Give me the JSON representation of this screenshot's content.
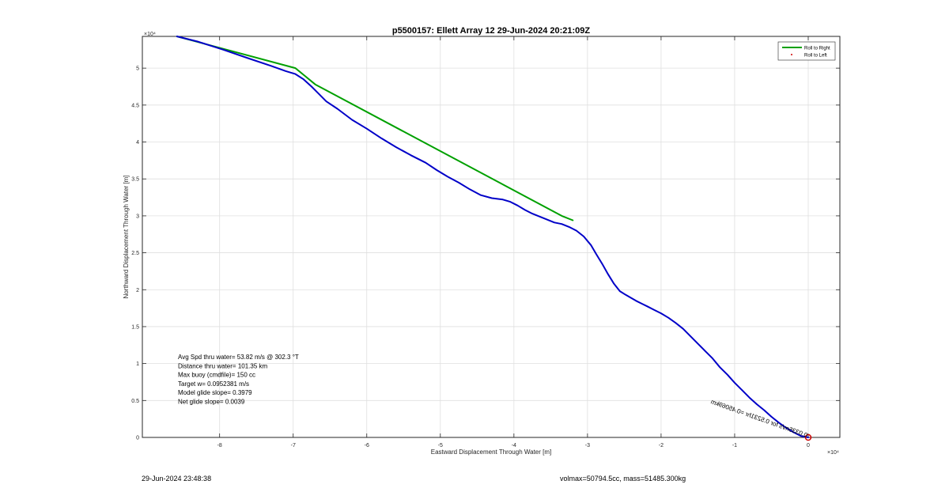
{
  "chart_data": {
    "type": "line",
    "title": "p5500157: Ellett Array 12 29-Jun-2024 20:21:09Z",
    "xlabel": "Eastward Displacement Through Water [m]",
    "ylabel": "Northward Displacement Through Water [m]",
    "x_exponent_label": "×10⁴",
    "y_exponent_label": "×10⁴",
    "xlim": [
      -90500,
      4300
    ],
    "ylim": [
      0,
      54300
    ],
    "xticks": [
      -80000,
      -70000,
      -60000,
      -50000,
      -40000,
      -30000,
      -20000,
      -10000,
      0
    ],
    "xtick_labels": [
      "-8",
      "-7",
      "-6",
      "-5",
      "-4",
      "-3",
      "-2",
      "-1",
      "0"
    ],
    "yticks": [
      0,
      5000,
      10000,
      15000,
      20000,
      25000,
      30000,
      35000,
      40000,
      45000,
      50000
    ],
    "ytick_labels": [
      "0",
      "0.5",
      "1",
      "1.5",
      "2",
      "2.5",
      "3",
      "3.5",
      "4",
      "4.5",
      "5"
    ],
    "grid": true,
    "legend_location": "top-right",
    "legend": [
      {
        "label": "Roll to Right",
        "color": "#00a000",
        "style": "line"
      },
      {
        "label": "Roll to Left",
        "color": "#d00000",
        "style": "dot"
      }
    ],
    "series": [
      {
        "name": "Roll to Right",
        "color": "#00a000",
        "x": [
          -85800,
          -69700,
          -67000,
          -33500,
          -32000
        ],
        "y": [
          54300,
          50000,
          47800,
          30000,
          29400
        ]
      },
      {
        "color": "#0000c8",
        "x": [
          -85800,
          -83000,
          -79500,
          -76000,
          -73000,
          -71000,
          -69700,
          -68600,
          -67500,
          -66500,
          -65500,
          -64000,
          -62000,
          -60000,
          -58000,
          -56000,
          -54000,
          -52000,
          -50500,
          -49000,
          -47500,
          -46000,
          -44500,
          -43000,
          -41500,
          -40500,
          -39500,
          -38500,
          -37500,
          -36500,
          -35500,
          -34500,
          -33500,
          -32500,
          -31500,
          -30500,
          -29500,
          -28800,
          -28000,
          -27200,
          -26400,
          -25600,
          -24800,
          -24100,
          -23400,
          -22600,
          -21800,
          -21000,
          -20000,
          -19000,
          -18000,
          -17000,
          -16000,
          -15000,
          -14000,
          -13000,
          -12000,
          -11000,
          -10000,
          -9000,
          -8000,
          -7000,
          -6000,
          -5000,
          -4000,
          -3000,
          -2000,
          -1000,
          0
        ],
        "y": [
          54300,
          53600,
          52500,
          51300,
          50300,
          49600,
          49200,
          48500,
          47500,
          46500,
          45500,
          44500,
          43000,
          41800,
          40500,
          39300,
          38200,
          37200,
          36200,
          35300,
          34500,
          33600,
          32800,
          32400,
          32200,
          31900,
          31400,
          30800,
          30300,
          29900,
          29500,
          29100,
          28900,
          28500,
          28000,
          27200,
          26000,
          24800,
          23500,
          22100,
          20800,
          19800,
          19300,
          18900,
          18500,
          18100,
          17700,
          17300,
          16800,
          16200,
          15500,
          14700,
          13700,
          12700,
          11700,
          10700,
          9500,
          8500,
          7400,
          6400,
          5400,
          4500,
          3700,
          2800,
          2000,
          1300,
          700,
          200,
          0
        ]
      }
    ],
    "start_marker": {
      "x": 0,
      "y": 0,
      "color": "#d00000"
    },
    "stats": [
      "Avg Spd thru water= 53.82 m/s @ 302.3 °T",
      "Distance thru water= 101.35 km",
      "Max buoy (cmdfile)= 150 cc",
      "Target w= 0.0952381 m/s",
      "Model glide slope= 0.3979",
      "Net glide slope= 0.0039"
    ],
    "rotated_annotation": "0.0335m/s for 0.5231hr =0.45069km"
  },
  "footer": {
    "timestamp": "29-Jun-2024 23:48:38",
    "volmax_mass": "volmax=50794.5cc, mass=51485.300kg"
  }
}
